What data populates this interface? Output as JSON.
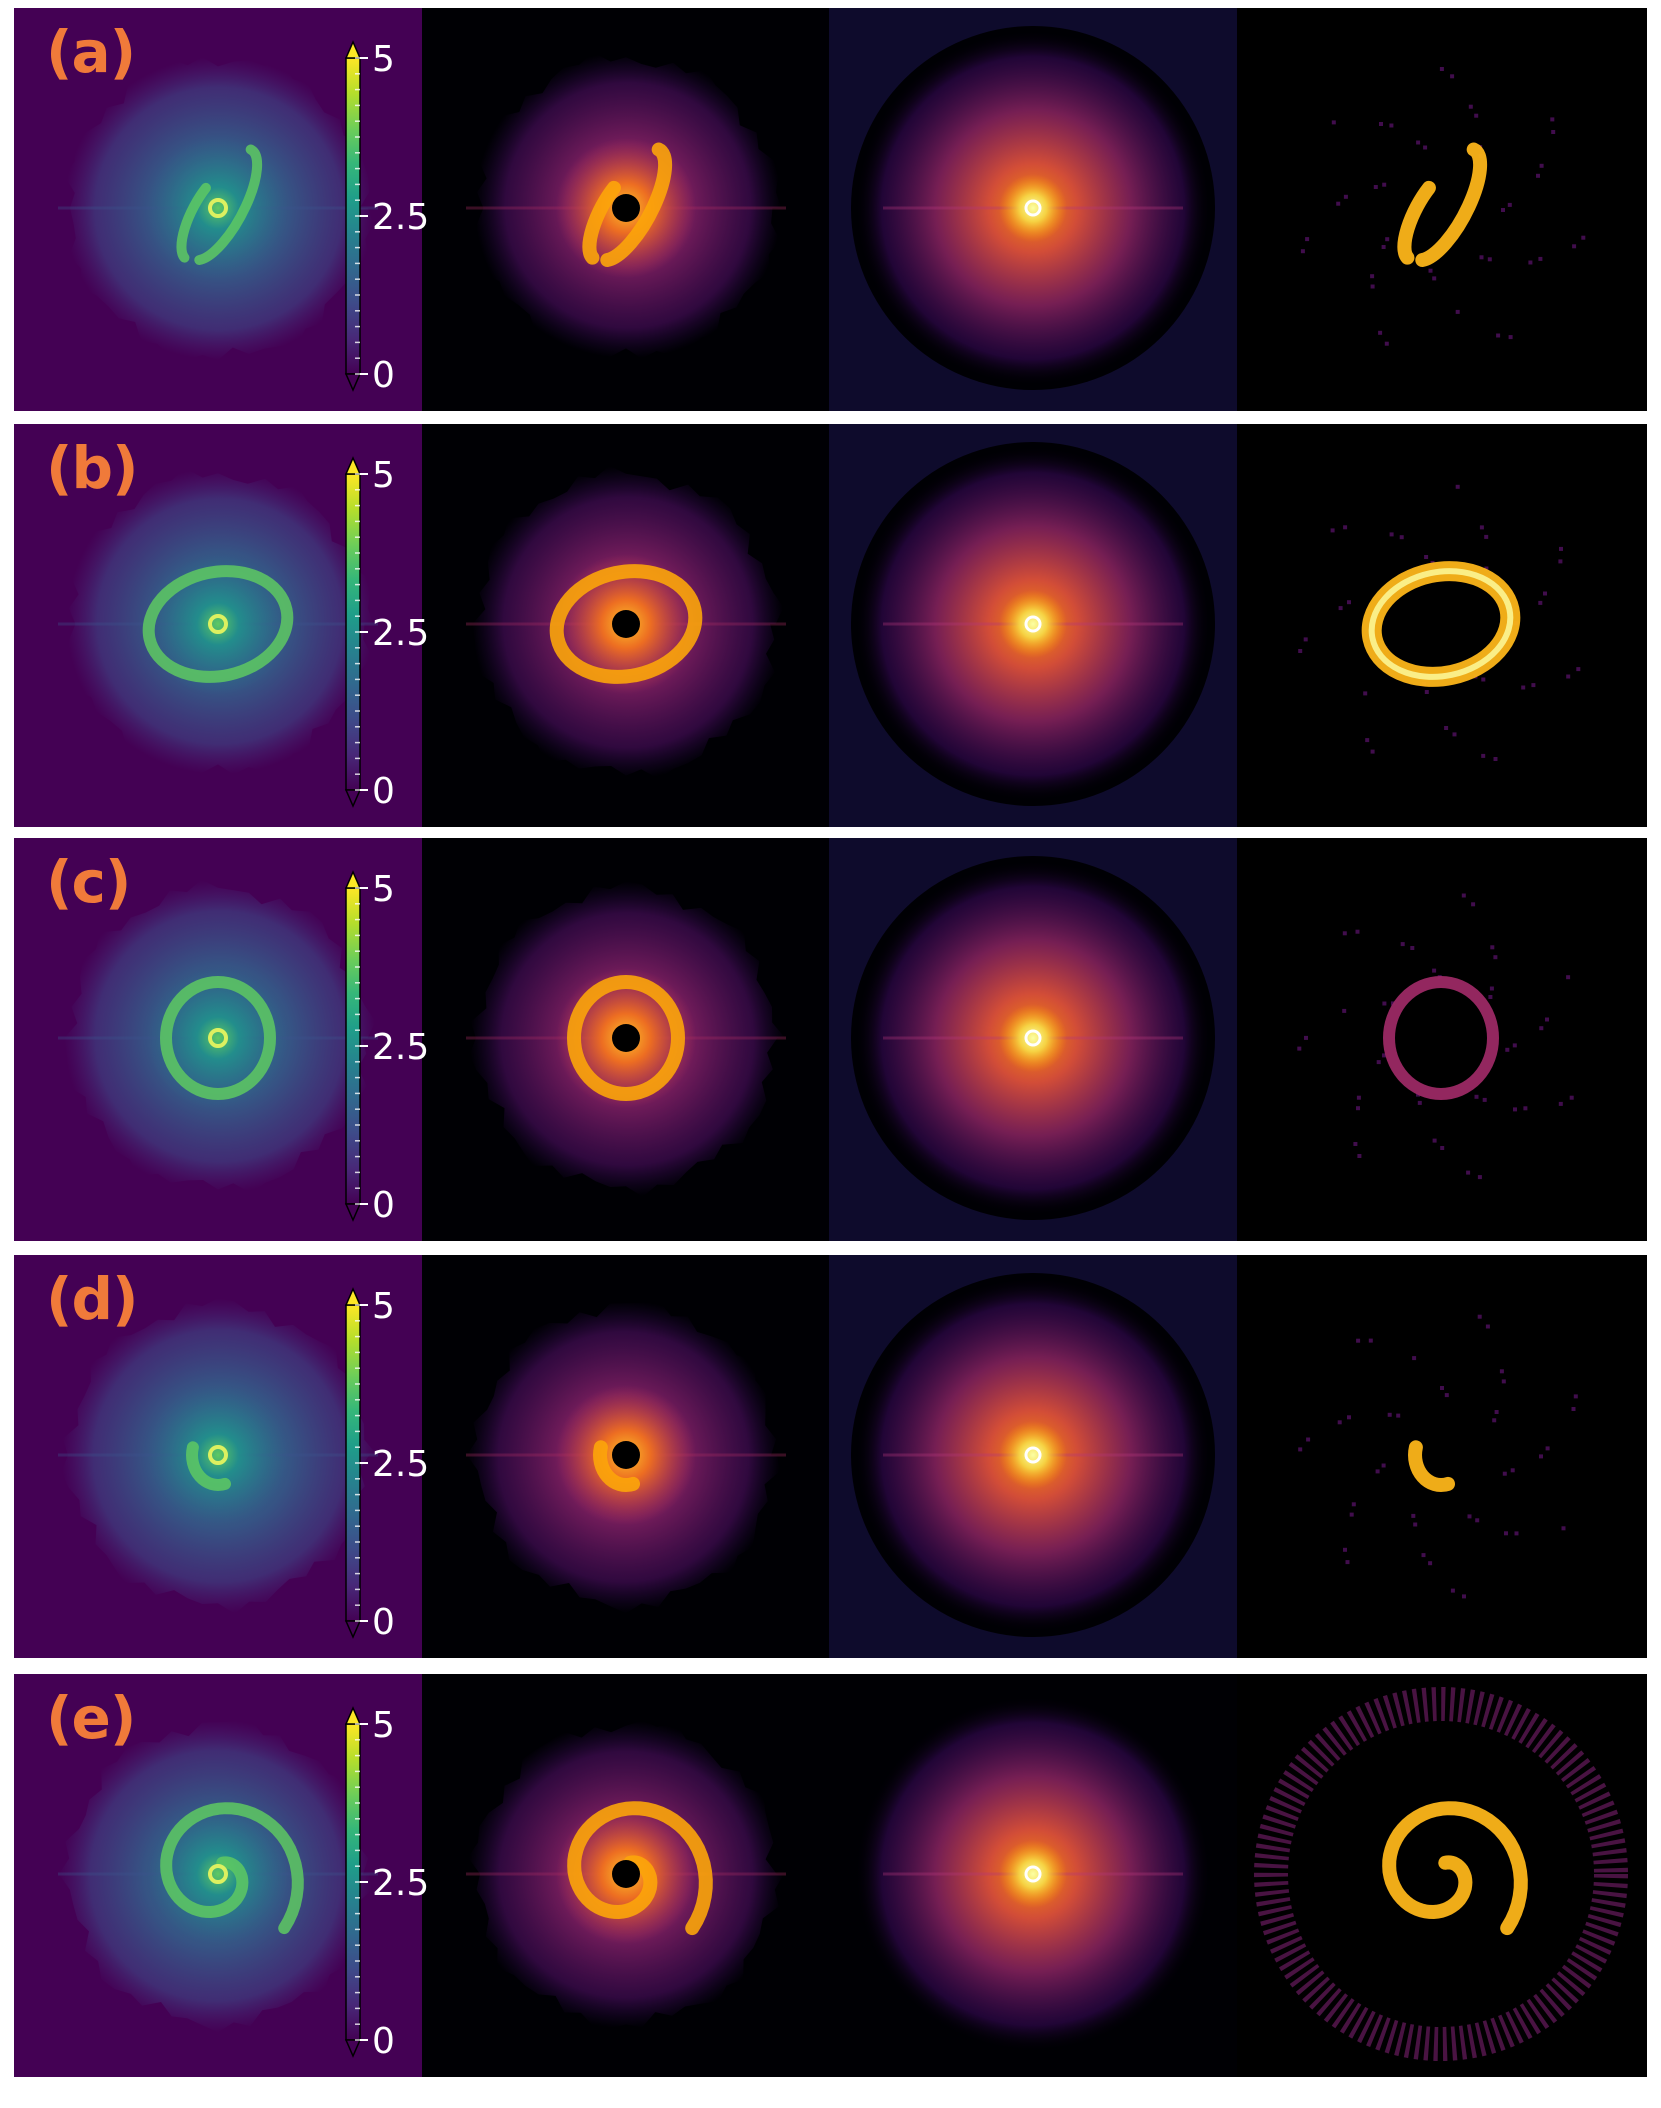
{
  "colors": {
    "label": "#f07a3a",
    "viridis_bg": "#440154",
    "inferno_bg": "#000004",
    "sky_bg": "#0e0b2c",
    "row_gap": "#ffffff"
  },
  "colorbar": {
    "colormap": "viridis",
    "extend": "both",
    "tick_labels": [
      "5",
      "2.5",
      "0"
    ],
    "ticks": [
      5,
      2.5,
      0
    ],
    "range": [
      0,
      5
    ]
  },
  "rows": [
    {
      "label": "(a)",
      "structure": "inclined-disk"
    },
    {
      "label": "(b)",
      "structure": "ring"
    },
    {
      "label": "(c)",
      "structure": "faint-ring"
    },
    {
      "label": "(d)",
      "structure": "arc"
    },
    {
      "label": "(e)",
      "structure": "spiral"
    }
  ],
  "columns": [
    "viridis-map",
    "inferno-map-masked",
    "inferno-map-circular",
    "residual-map"
  ]
}
